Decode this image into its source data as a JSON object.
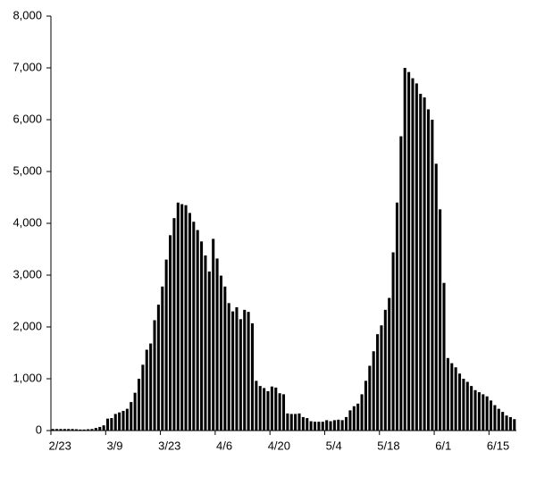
{
  "chart_data": {
    "type": "bar",
    "categories": [
      "2/23",
      null,
      null,
      null,
      null,
      null,
      null,
      null,
      null,
      null,
      null,
      null,
      null,
      null,
      "3/9",
      null,
      null,
      null,
      null,
      null,
      null,
      null,
      null,
      null,
      null,
      null,
      null,
      null,
      "3/23",
      null,
      null,
      null,
      null,
      null,
      null,
      null,
      null,
      null,
      null,
      null,
      null,
      null,
      "4/6",
      null,
      null,
      null,
      null,
      null,
      null,
      null,
      null,
      null,
      null,
      null,
      null,
      null,
      "4/20",
      null,
      null,
      null,
      null,
      null,
      null,
      null,
      null,
      null,
      null,
      null,
      null,
      null,
      "5/4",
      null,
      null,
      null,
      null,
      null,
      null,
      null,
      null,
      null,
      null,
      null,
      null,
      null,
      "5/18",
      null,
      null,
      null,
      null,
      null,
      null,
      null,
      null,
      null,
      null,
      null,
      null,
      null,
      "6/1",
      null,
      null,
      null,
      null,
      null,
      null,
      null,
      null,
      null,
      null,
      null,
      null,
      null,
      "6/15",
      null,
      null,
      null,
      null,
      null,
      null
    ],
    "values": [
      30,
      30,
      30,
      30,
      30,
      30,
      25,
      20,
      20,
      25,
      30,
      50,
      70,
      100,
      230,
      240,
      320,
      350,
      380,
      420,
      550,
      730,
      1000,
      1270,
      1560,
      1680,
      2130,
      2430,
      2780,
      3300,
      3770,
      4100,
      4400,
      4370,
      4350,
      4200,
      4030,
      3870,
      3650,
      3380,
      3070,
      3700,
      3320,
      2990,
      2780,
      2460,
      2300,
      2380,
      2150,
      2330,
      2290,
      2070,
      960,
      860,
      820,
      760,
      850,
      830,
      720,
      700,
      330,
      320,
      320,
      330,
      260,
      240,
      180,
      170,
      170,
      170,
      200,
      180,
      200,
      210,
      200,
      260,
      390,
      470,
      520,
      700,
      960,
      1250,
      1530,
      1860,
      2030,
      2330,
      2560,
      3440,
      4400,
      5680,
      7000,
      6920,
      6800,
      6700,
      6500,
      6430,
      6200,
      6000,
      5150,
      4270,
      2850,
      1400,
      1300,
      1220,
      1100,
      1000,
      940,
      860,
      780,
      740,
      700,
      660,
      580,
      490,
      420,
      360,
      290,
      260,
      220
    ],
    "color": "#000000",
    "ylim": [
      0,
      8000
    ],
    "yticks": [
      0,
      {
        "value": 1000,
        "label": "1,000"
      },
      {
        "value": 2000,
        "label": "2,000"
      },
      {
        "value": 3000,
        "label": "3,000"
      },
      {
        "value": 4000,
        "label": "4,000"
      },
      {
        "value": 5000,
        "label": "5,000"
      },
      {
        "value": 6000,
        "label": "6,000"
      },
      {
        "value": 7000,
        "label": "7,000"
      },
      {
        "value": 8000,
        "label": "8,000"
      }
    ],
    "grid": false
  }
}
